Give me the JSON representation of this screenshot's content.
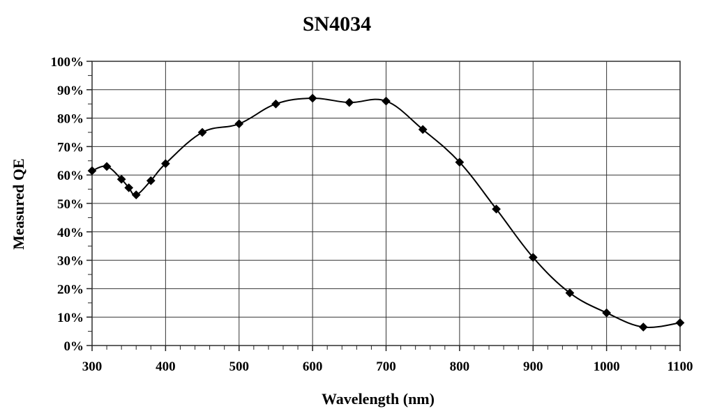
{
  "chart_data": {
    "type": "line",
    "title": "SN4034",
    "xlabel": "Wavelength (nm)",
    "ylabel": "Measured QE",
    "xlim": [
      300,
      1100
    ],
    "ylim": [
      0,
      100
    ],
    "grid": true,
    "x_ticks": [
      "300",
      "400",
      "500",
      "600",
      "700",
      "800",
      "900",
      "1000",
      "1100"
    ],
    "y_ticks": [
      "0%",
      "10%",
      "20%",
      "30%",
      "40%",
      "50%",
      "60%",
      "70%",
      "80%",
      "90%",
      "100%"
    ],
    "series": [
      {
        "name": "Measured QE",
        "x": [
          300,
          320,
          340,
          350,
          360,
          380,
          400,
          450,
          500,
          550,
          600,
          650,
          700,
          750,
          800,
          850,
          900,
          950,
          1000,
          1050,
          1100
        ],
        "y": [
          61.5,
          63,
          58.5,
          55.5,
          53,
          58,
          64,
          75,
          78,
          85,
          87,
          85.5,
          86,
          76,
          64.5,
          48,
          31,
          18.5,
          11.5,
          6.5,
          8
        ]
      }
    ]
  }
}
